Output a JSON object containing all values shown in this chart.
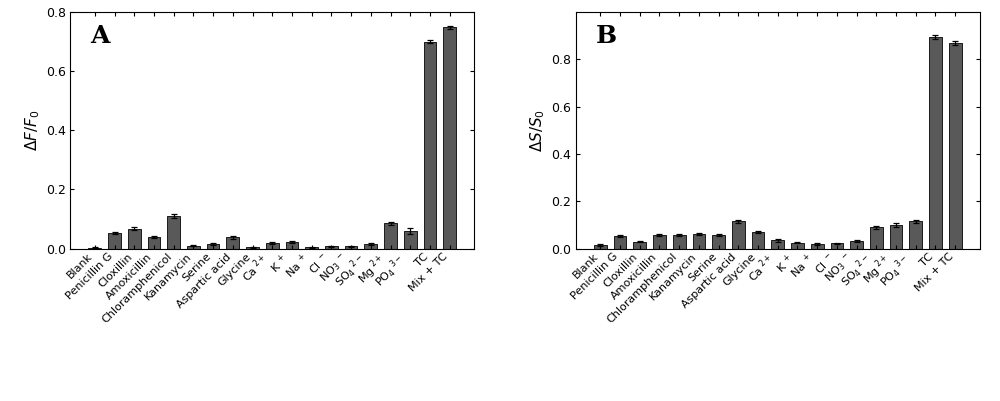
{
  "values_A": [
    0.003,
    0.052,
    0.068,
    0.04,
    0.11,
    0.01,
    0.015,
    0.038,
    0.005,
    0.018,
    0.022,
    0.005,
    0.008,
    0.008,
    0.015,
    0.085,
    0.06,
    0.7,
    0.748
  ],
  "errors_A": [
    0.002,
    0.004,
    0.004,
    0.003,
    0.007,
    0.002,
    0.003,
    0.005,
    0.002,
    0.003,
    0.003,
    0.002,
    0.002,
    0.002,
    0.003,
    0.004,
    0.009,
    0.006,
    0.006
  ],
  "values_B": [
    0.015,
    0.055,
    0.03,
    0.058,
    0.058,
    0.06,
    0.058,
    0.115,
    0.07,
    0.035,
    0.025,
    0.02,
    0.022,
    0.032,
    0.09,
    0.1,
    0.115,
    0.893,
    0.868
  ],
  "errors_B": [
    0.003,
    0.004,
    0.003,
    0.004,
    0.004,
    0.004,
    0.004,
    0.007,
    0.004,
    0.005,
    0.003,
    0.003,
    0.003,
    0.004,
    0.005,
    0.008,
    0.006,
    0.009,
    0.009
  ],
  "ylabel_A": "$\\Delta F/F_0$",
  "ylabel_B": "$\\Delta S/S_0$",
  "label_A": "A",
  "label_B": "B",
  "bar_color": "#595959",
  "bar_edge_color": "#1a1a1a",
  "ylim_A": [
    0.0,
    0.8
  ],
  "ylim_B": [
    0.0,
    1.0
  ],
  "yticks_A": [
    0.0,
    0.2,
    0.4,
    0.6,
    0.8
  ],
  "yticks_B": [
    0.0,
    0.2,
    0.4,
    0.6,
    0.8
  ],
  "bg_color": "#ffffff",
  "tick_fontsize": 8,
  "ylabel_fontsize": 11,
  "label_fontsize": 18
}
